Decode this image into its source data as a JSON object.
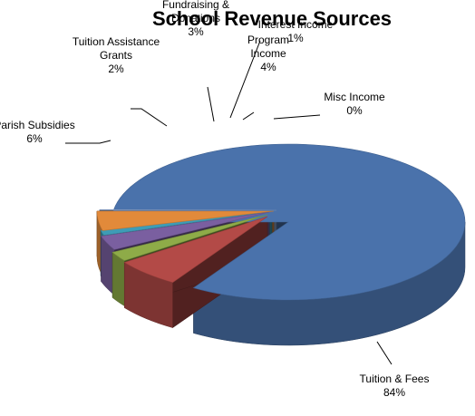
{
  "chart_data": {
    "type": "pie",
    "title": "School Revenue Sources",
    "slices": [
      {
        "label": [
          "Tuition & Fees"
        ],
        "value": 84,
        "percent_label": "84%",
        "color": "#4A72AB"
      },
      {
        "label": [
          "Parish Subsidies"
        ],
        "value": 6,
        "percent_label": "6%",
        "color": "#B34A47"
      },
      {
        "label": [
          "Tuition Assistance",
          "Grants"
        ],
        "value": 2,
        "percent_label": "2%",
        "color": "#8EAB48"
      },
      {
        "label": [
          "Fundraising &",
          "Donations"
        ],
        "value": 3,
        "percent_label": "3%",
        "color": "#7A5FA0"
      },
      {
        "label": [
          "Interest Income"
        ],
        "value": 1,
        "percent_label": "1%",
        "color": "#3E9CB6"
      },
      {
        "label": [
          "Program",
          "Income"
        ],
        "value": 4,
        "percent_label": "4%",
        "color": "#E28A3A"
      },
      {
        "label": [
          "Misc Income"
        ],
        "value": 0,
        "percent_label": "0%",
        "color": "#8FA8D2"
      }
    ],
    "style": "3d-exploded"
  }
}
